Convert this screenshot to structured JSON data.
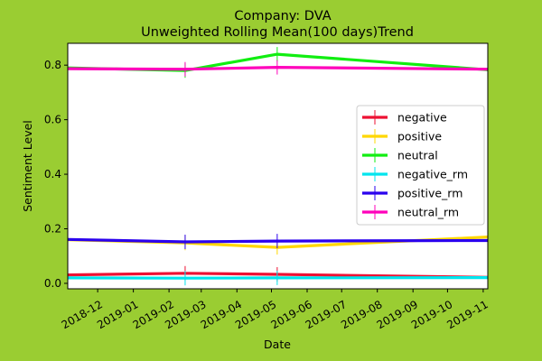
{
  "chart_data": {
    "type": "line",
    "title": "Company: DVA",
    "subtitle": "Unweighted Rolling Mean(100 days)Trend",
    "xlabel": "Date",
    "ylabel": "Sentiment Level",
    "x_ticks": [
      "2018-12",
      "2019-01",
      "2019-02",
      "2019-03",
      "2019-04",
      "2019-05",
      "2019-06",
      "2019-07",
      "2019-08",
      "2019-09",
      "2019-10",
      "2019-11"
    ],
    "y_ticks": [
      "0.0",
      "0.2",
      "0.4",
      "0.6",
      "0.8"
    ],
    "xlim": [
      "2018-11-05",
      "2019-11-05"
    ],
    "ylim": [
      -0.02,
      0.88
    ],
    "grid": false,
    "legend_position": "center-right",
    "x": [
      "2018-11-05",
      "2019-02-15",
      "2019-05-06",
      "2019-11-05"
    ],
    "series": [
      {
        "name": "negative",
        "color": "#ee1133",
        "values": [
          0.031,
          0.037,
          0.033,
          0.022
        ]
      },
      {
        "name": "positive",
        "color": "#ffd700",
        "values": [
          0.16,
          0.148,
          0.132,
          0.17
        ]
      },
      {
        "name": "neutral",
        "color": "#11ee11",
        "values": [
          0.79,
          0.78,
          0.84,
          0.783
        ]
      },
      {
        "name": "negative_rm",
        "color": "#00e5ee",
        "values": [
          0.02,
          0.019,
          0.02,
          0.021
        ]
      },
      {
        "name": "positive_rm",
        "color": "#2a00ee",
        "values": [
          0.161,
          0.152,
          0.155,
          0.157
        ]
      },
      {
        "name": "neutral_rm",
        "color": "#ff00bb",
        "values": [
          0.787,
          0.785,
          0.792,
          0.785
        ]
      }
    ]
  }
}
